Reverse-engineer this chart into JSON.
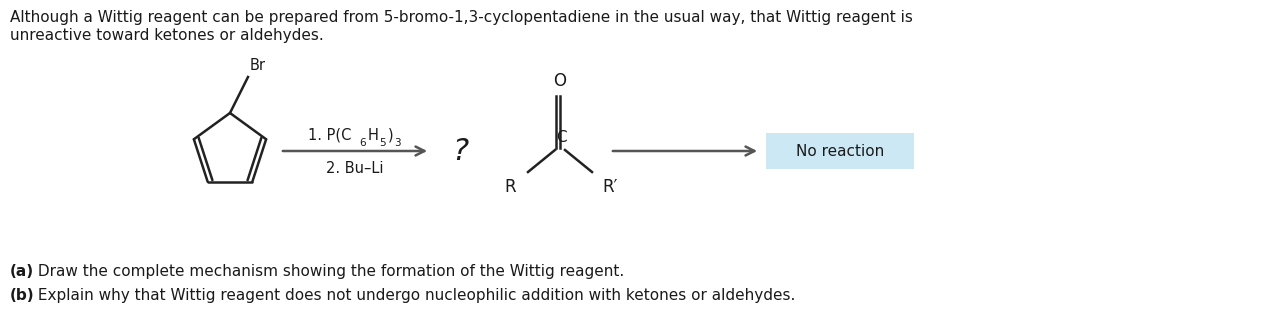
{
  "bg_color": "#ffffff",
  "text_color": "#1a1a1a",
  "header_line1": "Although a Wittig reagent can be prepared from 5-bromo-1,3-cyclopentadiene in the usual way, that Wittig reagent is",
  "header_line2": "unreactive toward ketones or aldehydes.",
  "step_label2": "2. Bu–Li",
  "question_mark": "?",
  "no_reaction": "No reaction",
  "no_reaction_bg": "#cce8f4",
  "br_label": "Br",
  "footer_a_bold": "(a)",
  "footer_a_rest": " Draw the complete mechanism showing the formation of the Wittig reagent.",
  "footer_b_bold": "(b)",
  "footer_b_rest": " Explain why that Wittig reagent does not undergo nucleophilic addition with ketones or aldehydes.",
  "arrow_color": "#555555",
  "bond_color": "#222222"
}
